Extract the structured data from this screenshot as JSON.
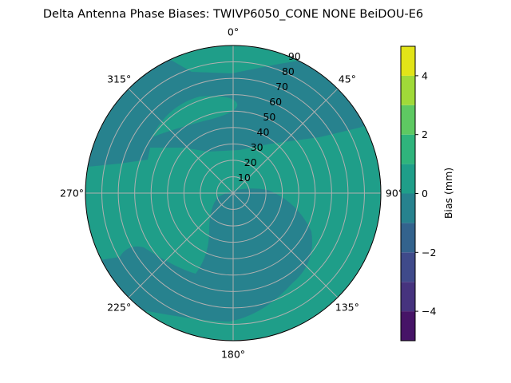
{
  "chart_data": {
    "type": "polar-contour",
    "title": "Delta Antenna Phase Biases: TWIVP6050_CONE  NONE BeiDOU-E6",
    "radial_ticks": [
      "10",
      "20",
      "30",
      "40",
      "50",
      "60",
      "70",
      "80",
      "90"
    ],
    "radial_range": [
      0,
      90
    ],
    "angle_ticks": [
      "0°",
      "45°",
      "90°",
      "135°",
      "180°",
      "225°",
      "270°",
      "315°"
    ],
    "angle_zero": "top",
    "angle_direction": "clockwise",
    "grid": true,
    "colorbar": {
      "label": "Bias (mm)",
      "range": [
        -5,
        5
      ],
      "levels": [
        -5,
        -4,
        -3,
        -2,
        -1,
        0,
        1,
        2,
        3,
        4,
        5
      ],
      "tick_labels": [
        "−4",
        "−2",
        "0",
        "2",
        "4"
      ],
      "tick_values": [
        -4,
        -2,
        0,
        2,
        4
      ],
      "colormap": "viridis",
      "band_colors": [
        "#461467",
        "#46337e",
        "#3f4a8a",
        "#33638d",
        "#27828e",
        "#1f9e89",
        "#2fb47c",
        "#5ec962",
        "#a0da39",
        "#e2e418"
      ]
    },
    "regions": [
      {
        "level_range": [
          0,
          1
        ],
        "description_color": "#1f9e89",
        "role": "background"
      },
      {
        "level_range": [
          -1,
          0
        ],
        "description_color": "#27828e"
      },
      {
        "level_range": [
          -2,
          -1
        ],
        "description_color": "#33638d"
      }
    ]
  }
}
